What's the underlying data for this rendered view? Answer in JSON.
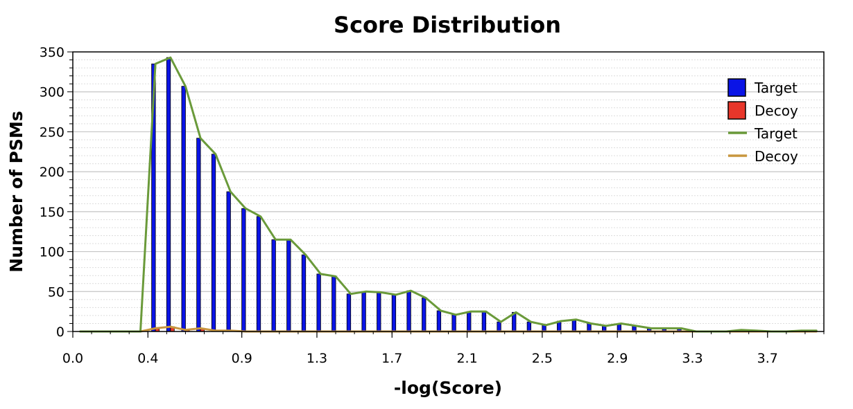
{
  "chart_data": {
    "type": "bar",
    "title": "Score Distribution",
    "xlabel": "-log(Score)",
    "ylabel": "Number of PSMs",
    "xlim": [
      0.0,
      4.0
    ],
    "ylim": [
      0,
      350
    ],
    "x_ticks": [
      "0.0",
      "0.4",
      "0.9",
      "1.3",
      "1.7",
      "2.1",
      "2.5",
      "2.9",
      "3.3",
      "3.7"
    ],
    "y_ticks": [
      0,
      50,
      100,
      150,
      200,
      250,
      300,
      350
    ],
    "grid": true,
    "legend_position": "top-right",
    "legend": [
      {
        "label": "Target",
        "kind": "bar",
        "color": "#0a14e6"
      },
      {
        "label": "Decoy",
        "kind": "bar",
        "color": "#e8362a"
      },
      {
        "label": "Target",
        "kind": "line",
        "color": "#6a9a3a"
      },
      {
        "label": "Decoy",
        "kind": "line",
        "color": "#c8963e"
      }
    ],
    "x": [
      0.04,
      0.12,
      0.2,
      0.28,
      0.36,
      0.44,
      0.52,
      0.6,
      0.68,
      0.76,
      0.84,
      0.92,
      1.0,
      1.08,
      1.16,
      1.24,
      1.32,
      1.4,
      1.48,
      1.56,
      1.64,
      1.72,
      1.8,
      1.88,
      1.96,
      2.04,
      2.12,
      2.2,
      2.28,
      2.36,
      2.44,
      2.52,
      2.6,
      2.68,
      2.76,
      2.84,
      2.92,
      3.0,
      3.08,
      3.16,
      3.24,
      3.32,
      3.4,
      3.48,
      3.56,
      3.64,
      3.72,
      3.8,
      3.88,
      3.96
    ],
    "series": [
      {
        "name": "Target",
        "kind": "bar",
        "color": "#0a14e6",
        "values": [
          0,
          0,
          0,
          0,
          0,
          335,
          343,
          307,
          242,
          222,
          175,
          154,
          144,
          115,
          115,
          96,
          72,
          69,
          47,
          50,
          49,
          46,
          51,
          42,
          26,
          21,
          25,
          25,
          12,
          24,
          12,
          8,
          13,
          15,
          10,
          7,
          10,
          7,
          4,
          4,
          4,
          0,
          0,
          0,
          0,
          0,
          0,
          0,
          0,
          0
        ]
      },
      {
        "name": "Decoy",
        "kind": "bar",
        "color": "#e8362a",
        "values": [
          0,
          0,
          0,
          0,
          0,
          4,
          6,
          2,
          4,
          1,
          1,
          0,
          0,
          0,
          0,
          0,
          0,
          0,
          0,
          0,
          0,
          0,
          0,
          0,
          0,
          0,
          0,
          0,
          0,
          0,
          0,
          0,
          0,
          0,
          0,
          0,
          0,
          0,
          0,
          0,
          0,
          0,
          0,
          0,
          0,
          0,
          0,
          0,
          0,
          0
        ]
      },
      {
        "name": "Target",
        "kind": "line",
        "color": "#6a9a3a",
        "values": [
          0,
          0,
          0,
          0,
          0,
          335,
          343,
          307,
          242,
          222,
          175,
          154,
          144,
          115,
          115,
          96,
          72,
          69,
          47,
          50,
          49,
          46,
          51,
          42,
          26,
          21,
          25,
          25,
          12,
          24,
          12,
          8,
          13,
          15,
          10,
          7,
          10,
          7,
          4,
          4,
          4,
          0,
          0,
          0,
          2,
          1,
          0,
          0,
          1,
          1
        ]
      },
      {
        "name": "Decoy",
        "kind": "line",
        "color": "#c8963e",
        "values": [
          0,
          0,
          0,
          0,
          0,
          4,
          6,
          2,
          4,
          1,
          1,
          0,
          0,
          0,
          0,
          0,
          0,
          0,
          0,
          0,
          0,
          0,
          0,
          0,
          0,
          0,
          0,
          0,
          0,
          0,
          0,
          0,
          0,
          0,
          0,
          0,
          0,
          0,
          0,
          0,
          0,
          0,
          0,
          0,
          0,
          0,
          0,
          0,
          0,
          0
        ]
      }
    ]
  }
}
